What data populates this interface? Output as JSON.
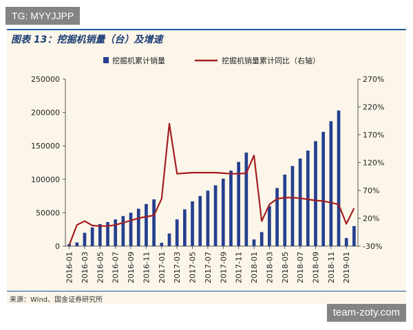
{
  "watermarks": {
    "top": "TG: MYYJJPP",
    "bottom": "team-zoty.com"
  },
  "source": "来源：Wind、国金证券研究所",
  "colors": {
    "bar": "#253f8f",
    "line": "#a51c1f",
    "panel": "#fbf6e9",
    "rule": "#1a5a9c"
  },
  "chart_data": {
    "type": "bar",
    "title": "图表 13：挖掘机销量（台）及增速",
    "legend_position": "top-center",
    "grid": false,
    "x": [
      "2016-01",
      "2016-02",
      "2016-03",
      "2016-04",
      "2016-05",
      "2016-06",
      "2016-07",
      "2016-08",
      "2016-09",
      "2016-10",
      "2016-11",
      "2016-12",
      "2017-01",
      "2017-02",
      "2017-03",
      "2017-04",
      "2017-05",
      "2017-06",
      "2017-07",
      "2017-08",
      "2017-09",
      "2017-10",
      "2017-11",
      "2017-12",
      "2018-01",
      "2018-02",
      "2018-03",
      "2018-04",
      "2018-05",
      "2018-06",
      "2018-07",
      "2018-08",
      "2018-09",
      "2018-10",
      "2018-11",
      "2018-12",
      "2019-01",
      "2019-02"
    ],
    "x_tick_labels": [
      "2016-01",
      "2016-03",
      "2016-05",
      "2016-07",
      "2016-09",
      "2016-11",
      "2017-01",
      "2017-03",
      "2017-05",
      "2017-07",
      "2017-09",
      "2017-11",
      "2018-01",
      "2018-03",
      "2018-05",
      "2018-07",
      "2018-09",
      "2018-11",
      "2019-01"
    ],
    "y_left": {
      "min": 0,
      "max": 250000,
      "ticks": [
        0,
        50000,
        100000,
        150000,
        200000,
        250000
      ]
    },
    "y_right": {
      "min": -30,
      "max": 270,
      "ticks": [
        "-30%",
        "20%",
        "70%",
        "120%",
        "170%",
        "220%",
        "270%"
      ]
    },
    "series": [
      {
        "name": "挖掘机累计销量",
        "type": "bar",
        "axis": "left",
        "values": [
          3000,
          5500,
          20000,
          28000,
          33000,
          36000,
          40000,
          45000,
          50000,
          56000,
          63000,
          70000,
          5000,
          19000,
          40000,
          55000,
          67000,
          75000,
          83000,
          91000,
          101000,
          113000,
          126000,
          140000,
          10000,
          21000,
          60000,
          87000,
          107000,
          120000,
          131000,
          143000,
          157000,
          171000,
          187000,
          203000,
          12000,
          30000
        ]
      },
      {
        "name": "挖掘机销量累计同比（右轴）",
        "type": "line",
        "axis": "right",
        "values": [
          -28,
          8,
          15,
          7,
          6,
          6,
          8,
          12,
          16,
          20,
          23,
          25,
          55,
          190,
          100,
          101,
          102,
          102,
          102,
          102,
          101,
          100,
          100,
          101,
          133,
          15,
          45,
          55,
          57,
          57,
          56,
          54,
          52,
          51,
          48,
          45,
          10,
          38
        ]
      }
    ]
  }
}
